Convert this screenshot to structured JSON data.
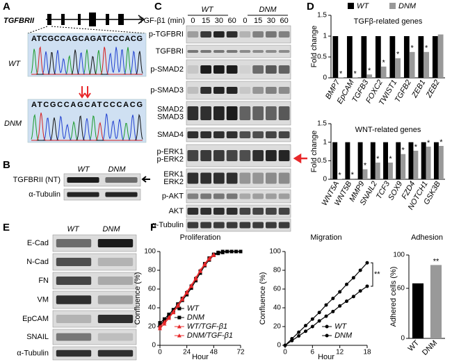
{
  "panel_labels": [
    "A",
    "B",
    "C",
    "D",
    "E",
    "F"
  ],
  "panel_a": {
    "gene": "TGFBRII",
    "wt_label": "WT",
    "dnm_label": "DNM",
    "wt_sequence": "ATCGCCAGCAGATCCCACG",
    "dnm_sequence": "ATCGCCAGCATCCCACG"
  },
  "panel_b": {
    "columns": [
      "WT",
      "DNM"
    ],
    "rows": [
      "TGFBRII (NT)",
      "α-Tubulin"
    ]
  },
  "panel_c": {
    "treatment": "TGF-β1 (min)",
    "groups": [
      "WT",
      "DNM"
    ],
    "times": [
      0,
      15,
      30,
      60,
      0,
      15,
      30,
      60
    ],
    "rows": [
      [
        "p-TGFBRI"
      ],
      [
        "TGFBRI"
      ],
      [
        "p-SMAD2"
      ],
      [
        "p-SMAD3"
      ],
      [
        "SMAD2",
        "SMAD3"
      ],
      [
        "SMAD4"
      ],
      [
        "p-ERK1",
        "p-ERK2"
      ],
      [
        "ERK1",
        "ERK2"
      ],
      [
        "p-AKT"
      ],
      [
        "AKT"
      ],
      [
        "α-Tubulin"
      ]
    ]
  },
  "panel_e": {
    "columns": [
      "WT",
      "DNM"
    ],
    "rows": [
      "E-Cad",
      "N-Cad",
      "FN",
      "VM",
      "EpCAM",
      "SNAIL",
      "α-Tubulin"
    ]
  },
  "chart_data": [
    {
      "type": "bar",
      "title": "TGFβ-related genes",
      "ylabel": "Fold change",
      "categories": [
        "BMP7",
        "EpCAM",
        "TGFB3",
        "FOXC2",
        "TWIST1",
        "TGFB2",
        "ZEB1",
        "ZEB2"
      ],
      "series": [
        {
          "name": "WT",
          "color": "#000000",
          "values": [
            1,
            1,
            1,
            1,
            1,
            1,
            1,
            1
          ]
        },
        {
          "name": "DNM",
          "color": "#999999",
          "values": [
            0.01,
            0.01,
            0.08,
            0.27,
            0.47,
            0.62,
            0.62,
            1.04
          ]
        }
      ],
      "annotations": [
        "*",
        "*",
        "*",
        "*",
        "*",
        "*",
        "*",
        null
      ],
      "ylim": [
        0,
        1.5
      ],
      "yticks": [
        0,
        0.5,
        1,
        1.5
      ],
      "legend": "top"
    },
    {
      "type": "bar",
      "title": "WNT-related genes",
      "ylabel": "Fold change",
      "categories": [
        "WNT5A",
        "WNT5B",
        "MMP9",
        "SNAIL2",
        "TCF3",
        "SOX9",
        "FZD4",
        "NOTCH1",
        "GSK3B"
      ],
      "series": [
        {
          "color": "#000000",
          "values": [
            1,
            1,
            1,
            1,
            1,
            1,
            1,
            1,
            1
          ]
        },
        {
          "color": "#999999",
          "values": [
            0.01,
            0.02,
            0.27,
            0.45,
            0.45,
            0.68,
            0.77,
            0.88,
            0.9
          ]
        }
      ],
      "annotations": [
        "*",
        "*",
        "*",
        "*",
        "*",
        "*",
        "*",
        "*",
        "*"
      ],
      "ylim": [
        0,
        1.5
      ],
      "yticks": [
        0,
        0.5,
        1,
        1.5
      ]
    },
    {
      "type": "line",
      "title": "Proliferation",
      "xlabel": "Hour",
      "ylabel": "Confluence (%)",
      "x": [
        0,
        4,
        8,
        12,
        16,
        20,
        24,
        28,
        32,
        36,
        40,
        44,
        48,
        52,
        56,
        60,
        64,
        68,
        72
      ],
      "series": [
        {
          "name": "WT",
          "color": "#000000",
          "marker": "square",
          "values": [
            24,
            28,
            33,
            38,
            44,
            50,
            56,
            63,
            71,
            79,
            87,
            93,
            97,
            99,
            100,
            100,
            100,
            100,
            100
          ]
        },
        {
          "name": "DNM",
          "color": "#000000",
          "marker": "square",
          "values": [
            22,
            26,
            31,
            36,
            42,
            48,
            54,
            61,
            69,
            77,
            85,
            91,
            96,
            98,
            99,
            100,
            100,
            100,
            100
          ]
        },
        {
          "name": "WT/TGF-β1",
          "color": "#e8282a",
          "marker": "triangle",
          "values": [
            20,
            25,
            30,
            36,
            43,
            50,
            57,
            64,
            72,
            80,
            87,
            93,
            97,
            null,
            null,
            null,
            null,
            null,
            null
          ]
        },
        {
          "name": "DNM/TGF-β1",
          "color": "#e8282a",
          "marker": "triangle",
          "values": [
            18,
            23,
            29,
            35,
            42,
            49,
            56,
            63,
            71,
            79,
            86,
            92,
            96,
            null,
            null,
            null,
            null,
            null,
            null
          ]
        }
      ],
      "xlim": [
        0,
        72
      ],
      "xticks": [
        0,
        24,
        48,
        72
      ],
      "ylim": [
        0,
        100
      ],
      "yticks": [
        0,
        20,
        40,
        60,
        80,
        100
      ],
      "legend": "lower right"
    },
    {
      "type": "line",
      "title": "Migration",
      "xlabel": "Hour",
      "ylabel": "Confluence (%)",
      "x": [
        0,
        1.5,
        3,
        4.5,
        6,
        7.5,
        9,
        10.5,
        12,
        13.5,
        15,
        16.5,
        18
      ],
      "series": [
        {
          "name": "WT",
          "color": "#000000",
          "marker": "circle",
          "values": [
            0,
            7,
            14,
            21,
            28,
            35,
            43,
            50,
            57,
            65,
            72,
            80,
            88
          ]
        },
        {
          "name": "DNM",
          "color": "#000000",
          "marker": "circle",
          "values": [
            0,
            5,
            10,
            15,
            20,
            26,
            31,
            36,
            42,
            47,
            52,
            58,
            63
          ]
        }
      ],
      "annotation": "**",
      "xlim": [
        0,
        18
      ],
      "xticks": [
        0,
        6,
        12,
        18
      ],
      "ylim": [
        0,
        100
      ],
      "yticks": [
        0,
        20,
        40,
        60,
        80,
        100
      ],
      "legend": "lower right"
    },
    {
      "type": "bar",
      "title": "Adhesion",
      "ylabel": "Adhered cells (%)",
      "categories": [
        "WT",
        "DNM"
      ],
      "values": [
        66,
        88
      ],
      "colors": [
        "#000000",
        "#999999"
      ],
      "annotations": [
        null,
        "**"
      ],
      "ylim": [
        0,
        100
      ],
      "yticks": [
        0,
        60,
        100
      ]
    }
  ]
}
